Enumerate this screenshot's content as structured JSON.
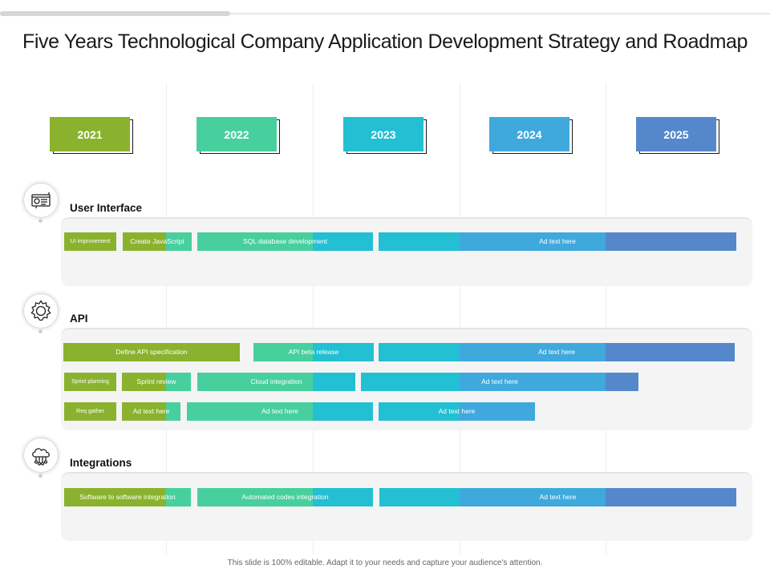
{
  "title": "Five Years Technological Company Application Development Strategy and Roadmap",
  "years": [
    "2021",
    "2022",
    "2023",
    "2024",
    "2025"
  ],
  "colors": {
    "y2021": "#8ab22e",
    "y2022": "#48cf9e",
    "y2023": "#23bfd3",
    "y2024": "#3fa9dd",
    "y2025": "#5588cb"
  },
  "sections": [
    {
      "name": "User Interface",
      "icon": "presentation-board-icon",
      "rows": [
        {
          "bars": [
            "UI improvement",
            "Create JavaScript",
            "SQL database development",
            "Ad text here"
          ]
        }
      ]
    },
    {
      "name": "API",
      "icon": "gear-icon",
      "rows": [
        {
          "bars": [
            "Define API specification",
            "API beta release",
            "Ad text  here"
          ]
        },
        {
          "bars": [
            "Sprint planning",
            "Sprint review",
            "Cloud integration",
            "Ad text  here"
          ]
        },
        {
          "bars": [
            "Req gather",
            "Ad text  here",
            "Ad text  here",
            "Ad text  here"
          ]
        }
      ]
    },
    {
      "name": "Integrations",
      "icon": "cloud-network-icon",
      "rows": [
        {
          "bars": [
            "Software to software integration",
            "Automated codes integration",
            "Ad text  here"
          ]
        }
      ]
    }
  ],
  "footer": "This slide is 100% editable.  Adapt it to your needs and capture your audience's attention."
}
